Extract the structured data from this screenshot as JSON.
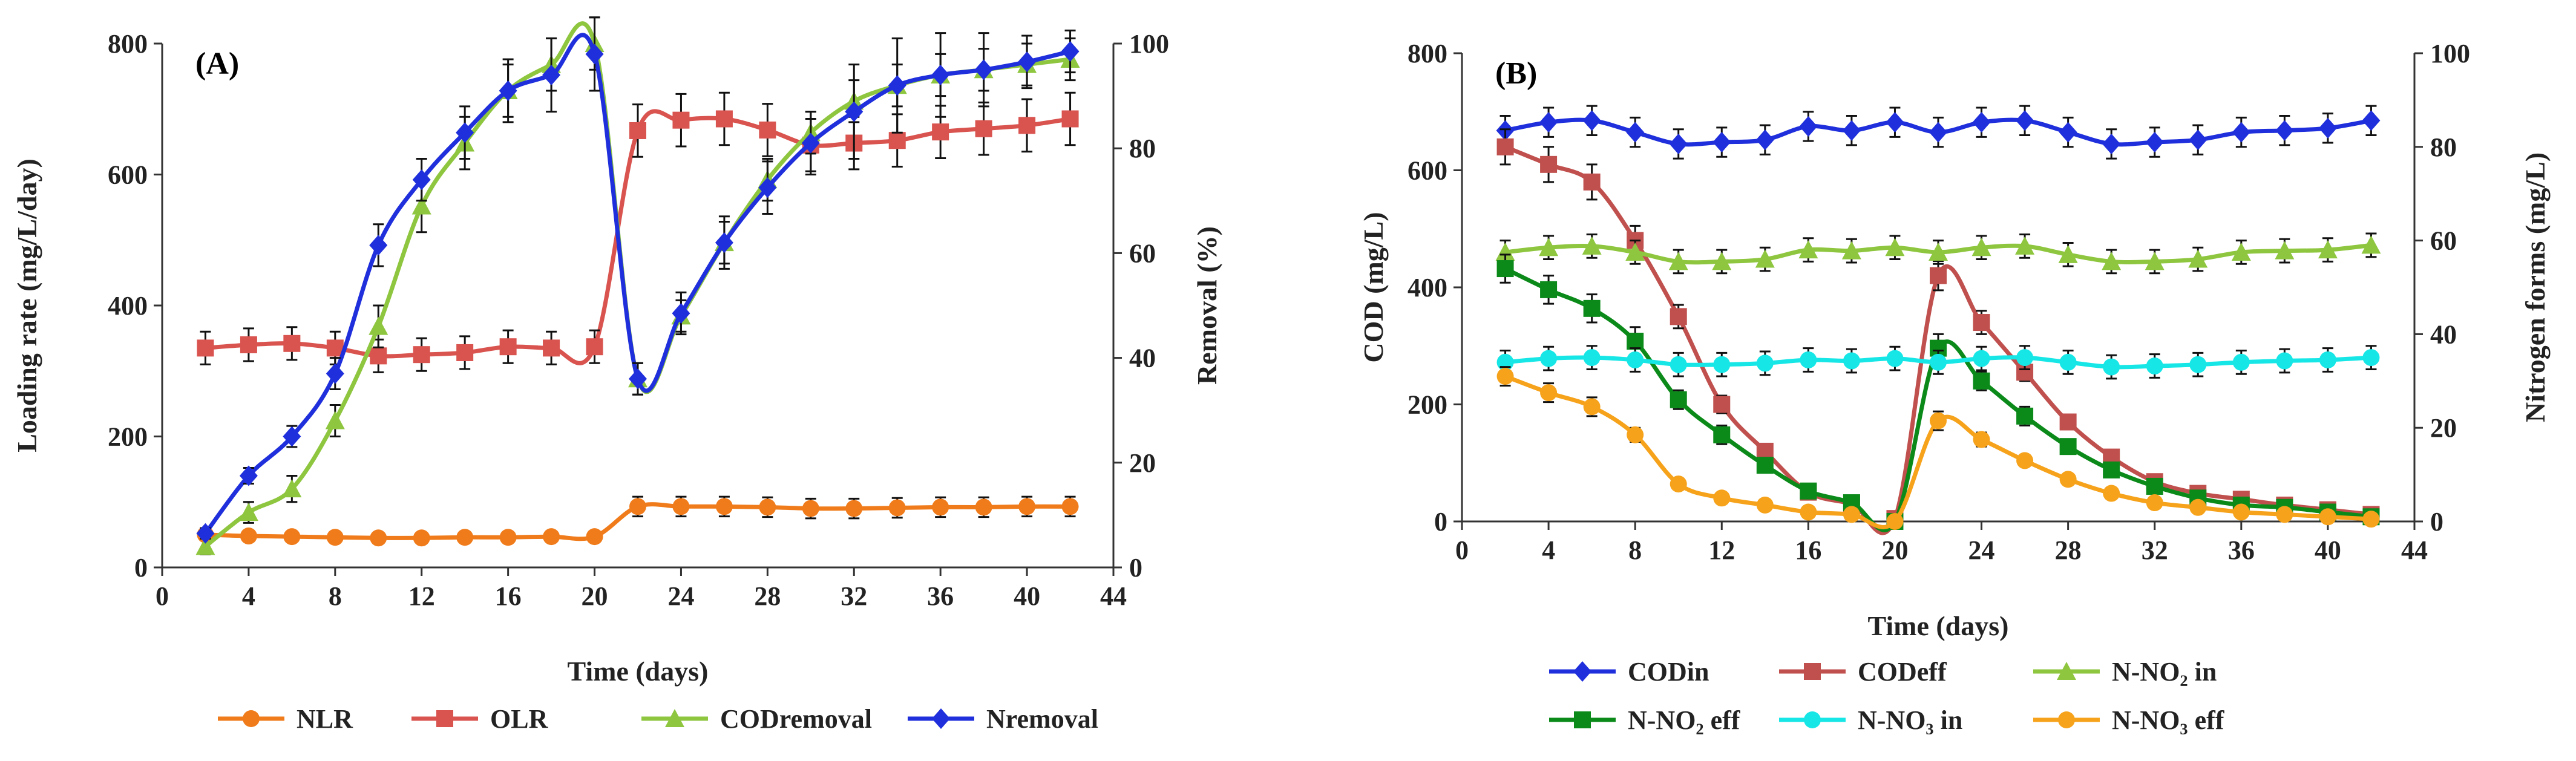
{
  "chart_data": [
    {
      "type": "line",
      "panel_label": "(A)",
      "xlabel": "Time (days)",
      "ylabel_left": "Loading  rate (mg/L/day)",
      "ylabel_right": "Removal (%)",
      "xlim": [
        0,
        44
      ],
      "xticks": [
        0,
        4,
        8,
        12,
        16,
        20,
        24,
        28,
        32,
        36,
        40,
        44
      ],
      "ylim_left": [
        0,
        800
      ],
      "yticks_left": [
        0,
        200,
        400,
        600,
        800
      ],
      "ylim_right": [
        0,
        100
      ],
      "yticks_right": [
        0,
        20,
        40,
        60,
        80,
        100
      ],
      "x": [
        2,
        4,
        6,
        8,
        10,
        12,
        14,
        16,
        18,
        20,
        22,
        24,
        26,
        28,
        30,
        32,
        34,
        36,
        38,
        40,
        42
      ],
      "series": [
        {
          "name": "NLR",
          "axis": "left",
          "color": "#f07b1a",
          "marker": "circle",
          "values": [
            50,
            48,
            47,
            46,
            45,
            45,
            46,
            46,
            47,
            47,
            93,
            93,
            93,
            92,
            90,
            90,
            91,
            92,
            92,
            93,
            93
          ],
          "errors": [
            8,
            8,
            8,
            8,
            8,
            8,
            8,
            8,
            8,
            8,
            15,
            15,
            15,
            15,
            15,
            15,
            15,
            15,
            15,
            15,
            15
          ]
        },
        {
          "name": "OLR",
          "axis": "left",
          "color": "#d9534f",
          "marker": "square",
          "values": [
            335,
            340,
            342,
            335,
            323,
            325,
            328,
            337,
            335,
            337,
            667,
            683,
            685,
            668,
            645,
            648,
            652,
            665,
            670,
            675,
            685
          ],
          "errors": [
            25,
            25,
            25,
            25,
            25,
            25,
            25,
            25,
            25,
            25,
            40,
            40,
            40,
            40,
            40,
            40,
            40,
            40,
            40,
            40,
            40
          ]
        },
        {
          "name": "CODremoval",
          "axis": "right",
          "color": "#8ec63f",
          "marker": "triangle",
          "values": [
            4,
            10.5,
            15,
            28,
            46,
            69,
            81,
            91,
            96,
            100,
            36,
            48,
            62,
            74,
            83,
            89,
            92,
            94,
            95,
            96,
            97
          ],
          "errors": [
            1.5,
            2,
            2.5,
            3,
            4,
            5,
            5,
            5,
            5,
            5,
            3,
            3,
            4,
            4,
            4,
            4,
            4,
            4,
            4,
            4,
            4
          ]
        },
        {
          "name": "Nremoval",
          "axis": "right",
          "color": "#1f2fdc",
          "marker": "diamond",
          "values": [
            6.5,
            17.5,
            25,
            37,
            61.5,
            74,
            83,
            91,
            94,
            98,
            36,
            48.5,
            62,
            72.5,
            81,
            87,
            92,
            94,
            95,
            96.5,
            98.5
          ],
          "errors": [
            1,
            1.5,
            2,
            3,
            4,
            4,
            5,
            6,
            7,
            7,
            3,
            4,
            5,
            5,
            6,
            9,
            9,
            8,
            7,
            5,
            4
          ]
        }
      ]
    },
    {
      "type": "line",
      "panel_label": "(B)",
      "xlabel": "Time (days)",
      "ylabel_left": "COD  (mg/L)",
      "ylabel_right": "Nitrogen forms (mg/L)",
      "xlim": [
        0,
        44
      ],
      "xticks": [
        0,
        4,
        8,
        12,
        16,
        20,
        24,
        28,
        32,
        36,
        40,
        44
      ],
      "ylim_left": [
        0,
        800
      ],
      "yticks_left": [
        0,
        200,
        400,
        600,
        800
      ],
      "ylim_right": [
        0,
        100
      ],
      "yticks_right": [
        0,
        20,
        40,
        60,
        80,
        100
      ],
      "x": [
        2,
        4,
        6,
        8,
        10,
        12,
        14,
        16,
        18,
        20,
        22,
        24,
        26,
        28,
        30,
        32,
        34,
        36,
        38,
        40,
        42
      ],
      "series": [
        {
          "name": "CODin",
          "axis": "left",
          "color": "#1f2fdc",
          "marker": "diamond",
          "values": [
            668,
            682,
            685,
            665,
            645,
            648,
            652,
            675,
            668,
            682,
            665,
            682,
            685,
            665,
            645,
            648,
            652,
            665,
            668,
            672,
            685
          ],
          "errors": [
            25,
            25,
            25,
            25,
            25,
            25,
            25,
            25,
            25,
            25,
            25,
            25,
            25,
            25,
            25,
            25,
            25,
            25,
            25,
            25,
            25
          ]
        },
        {
          "name": "CODeff",
          "axis": "left",
          "color": "#c0504d",
          "marker": "square",
          "values": [
            640,
            610,
            580,
            480,
            350,
            200,
            120,
            50,
            30,
            5,
            420,
            340,
            255,
            170,
            110,
            68,
            48,
            38,
            28,
            20,
            12
          ],
          "errors": [
            30,
            30,
            30,
            25,
            20,
            15,
            12,
            8,
            6,
            3,
            25,
            20,
            15,
            12,
            10,
            8,
            6,
            6,
            5,
            5,
            4
          ]
        },
        {
          "name": "N-NO₂ in",
          "axis": "right",
          "color": "#8ec63f",
          "marker": "triangle",
          "values": [
            57.5,
            58.5,
            58.8,
            57.5,
            55.5,
            55.5,
            56,
            58,
            57.8,
            58.5,
            57.5,
            58.5,
            58.8,
            57,
            55.5,
            55.5,
            56,
            57.5,
            57.8,
            58,
            59
          ],
          "errors": [
            2.5,
            2.5,
            2.5,
            2.5,
            2.5,
            2.5,
            2.5,
            2.5,
            2.5,
            2.5,
            2.5,
            2.5,
            2.5,
            2.5,
            2.5,
            2.5,
            2.5,
            2.5,
            2.5,
            2.5,
            2.5
          ]
        },
        {
          "name": "N-NO₂ eff",
          "axis": "right",
          "color": "#0b8a1a",
          "marker": "square",
          "values": [
            54,
            49.5,
            45.5,
            38.5,
            26,
            18.5,
            12,
            6.5,
            4,
            0,
            37,
            30,
            22.5,
            16,
            11,
            7.5,
            5,
            3.5,
            3,
            2,
            1
          ],
          "errors": [
            3,
            3,
            3,
            3,
            2,
            2,
            1.5,
            1,
            1,
            0.5,
            3,
            2,
            2,
            1.5,
            1,
            1,
            1,
            1,
            1,
            1,
            1
          ]
        },
        {
          "name": "N-NO₃ in",
          "axis": "right",
          "color": "#16e6e6",
          "marker": "circle",
          "values": [
            34,
            34.8,
            35,
            34.5,
            33.5,
            33.5,
            33.8,
            34.5,
            34.3,
            34.8,
            34,
            34.8,
            35,
            34,
            33,
            33.2,
            33.5,
            34,
            34.3,
            34.5,
            35
          ],
          "errors": [
            2.5,
            2.5,
            2.5,
            2.5,
            2.5,
            2.5,
            2.5,
            2.5,
            2.5,
            2.5,
            2.5,
            2.5,
            2.5,
            2.5,
            2.5,
            2.5,
            2.5,
            2.5,
            2.5,
            2.5,
            2.5
          ]
        },
        {
          "name": "N-NO₃ eff",
          "axis": "right",
          "color": "#f6a21a",
          "marker": "circle",
          "values": [
            31,
            27.5,
            24.5,
            18.5,
            8,
            5,
            3.5,
            2,
            1.5,
            0,
            21.5,
            17.5,
            13,
            9,
            6,
            4,
            3,
            2,
            1.5,
            1,
            0.5
          ],
          "errors": [
            2,
            2,
            2,
            1.5,
            1,
            0.8,
            0.5,
            0.5,
            0.5,
            0.3,
            2,
            1.5,
            1.2,
            1,
            0.8,
            0.5,
            0.5,
            0.5,
            0.5,
            0.5,
            0.5
          ]
        }
      ]
    }
  ]
}
